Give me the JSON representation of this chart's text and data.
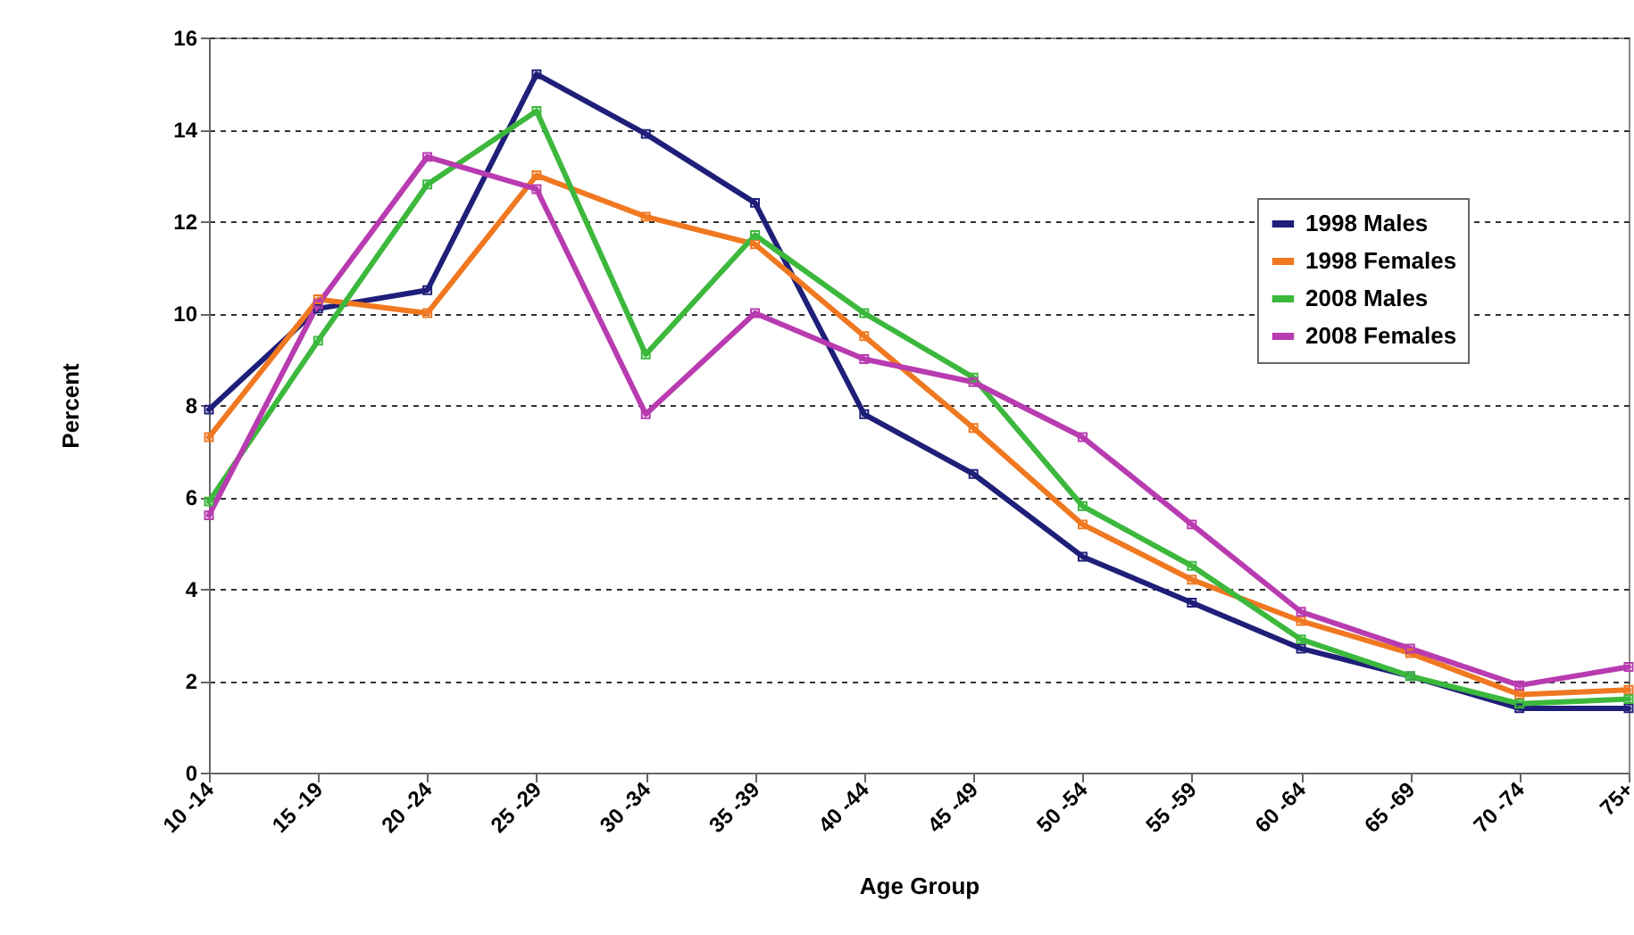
{
  "chart_data": {
    "type": "line",
    "xlabel": "Age Group",
    "ylabel": "Percent",
    "categories": [
      "10 -14",
      "15 -19",
      "20 -24",
      "25 -29",
      "30 -34",
      "35 -39",
      "40 -44",
      "45 -49",
      "50 -54",
      "55 -59",
      "60 -64",
      "65 -69",
      "70 -74",
      "75+"
    ],
    "series": [
      {
        "name": "1998 Males",
        "color": "#1f1f7a",
        "values": [
          7.9,
          10.1,
          10.5,
          15.2,
          13.9,
          12.4,
          7.8,
          6.5,
          4.7,
          3.7,
          2.7,
          2.1,
          1.4,
          1.4
        ]
      },
      {
        "name": "1998 Females",
        "color": "#f07820",
        "values": [
          7.3,
          10.3,
          10.0,
          13.0,
          12.1,
          11.5,
          9.5,
          7.5,
          5.4,
          4.2,
          3.3,
          2.6,
          1.7,
          1.8
        ]
      },
      {
        "name": "2008 Males",
        "color": "#3cb83c",
        "values": [
          5.9,
          9.4,
          12.8,
          14.4,
          9.1,
          11.7,
          10.0,
          8.6,
          5.8,
          4.5,
          2.9,
          2.1,
          1.5,
          1.6
        ]
      },
      {
        "name": "2008 Females",
        "color": "#b83cb0",
        "values": [
          5.6,
          10.2,
          13.4,
          12.7,
          7.8,
          10.0,
          9.0,
          8.5,
          7.3,
          5.4,
          3.5,
          2.7,
          1.9,
          2.3
        ]
      }
    ],
    "ylim": [
      0,
      16
    ],
    "yticks": [
      0,
      2,
      4,
      6,
      8,
      10,
      12,
      14,
      16
    ],
    "grid": "y",
    "legend": "top right",
    "marker": "square",
    "line_style": "solid"
  }
}
